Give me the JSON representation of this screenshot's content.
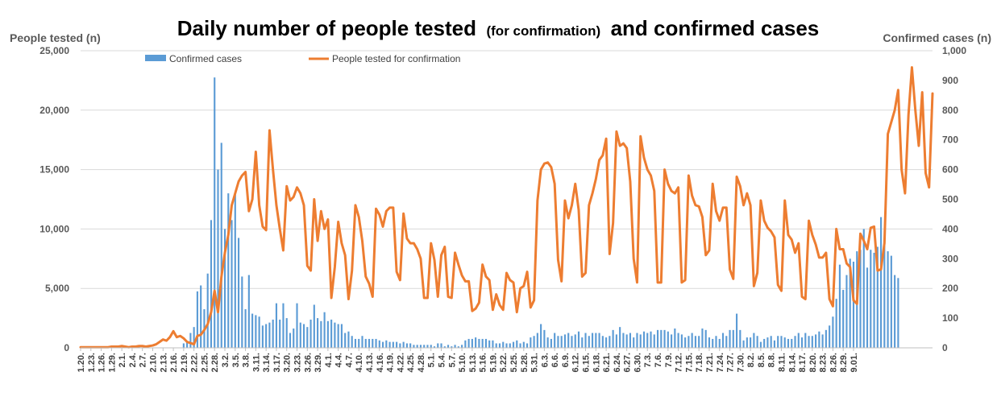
{
  "chart_data": {
    "type": "bar+line",
    "title": "Daily number of people tested",
    "title_parenthetical": "(for confirmation)",
    "title_suffix": "and confirmed cases",
    "ylabel_left": "People tested (n)",
    "ylabel_right": "Confirmed cases (n)",
    "ylim_left": [
      0,
      25000
    ],
    "ylim_right": [
      0,
      1000
    ],
    "yticks_left": [
      "0",
      "5,000",
      "10,000",
      "15,000",
      "20,000",
      "25,000"
    ],
    "yticks_right": [
      "0",
      "100",
      "200",
      "300",
      "400",
      "500",
      "600",
      "700",
      "800",
      "900",
      "1,000"
    ],
    "xtick_labels": [
      "1.20.",
      "1.23.",
      "1.26.",
      "1.29.",
      "2.1.",
      "2.4.",
      "2.7.",
      "2.10.",
      "2.13.",
      "2.16.",
      "2.19.",
      "2.22.",
      "2.25.",
      "2.28.",
      "3.2.",
      "3.5.",
      "3.8.",
      "3.11.",
      "3.14.",
      "3.17.",
      "3.20.",
      "3.23.",
      "3.26.",
      "3.29.",
      "4.1.",
      "4.4.",
      "4.7.",
      "4.10.",
      "4.13.",
      "4.16.",
      "4.19.",
      "4.22.",
      "4.25.",
      "4.28.",
      "5.1.",
      "5.4.",
      "5.7.",
      "5.10.",
      "5.13.",
      "5.16.",
      "5.19.",
      "5.22.",
      "5.25.",
      "5.28.",
      "5.31.",
      "6.3.",
      "6.6.",
      "6.9.",
      "6.12.",
      "6.15.",
      "6.18.",
      "6.21.",
      "6.24.",
      "6.27.",
      "6.30.",
      "7.3.",
      "7.6.",
      "7.9.",
      "7.12.",
      "7.15.",
      "7.18.",
      "7.21.",
      "7.24.",
      "7.27.",
      "7.30.",
      "8.2.",
      "8.5.",
      "8.8.",
      "8.11.",
      "8.14.",
      "8.17.",
      "8.20.",
      "8.23.",
      "8.26.",
      "8.29.",
      "9.01."
    ],
    "legend": {
      "placement": "top",
      "bars_label": "Confirmed cases",
      "line_label": "People tested for confirmation"
    },
    "series": [
      {
        "name": "Confirmed cases",
        "axis": "right",
        "type": "bar",
        "color": "#5b9bd5",
        "start_date": "2020-01-20",
        "step_days": 1,
        "values": [
          1,
          0,
          0,
          0,
          1,
          1,
          1,
          1,
          0,
          2,
          2,
          1,
          1,
          2,
          1,
          0,
          0,
          3,
          0,
          0,
          1,
          0,
          1,
          0,
          0,
          0,
          0,
          0,
          0,
          0,
          15,
          20,
          50,
          70,
          190,
          210,
          130,
          250,
          430,
          910,
          600,
          690,
          400,
          520,
          430,
          520,
          370,
          240,
          130,
          245,
          115,
          110,
          105,
          75,
          80,
          85,
          95,
          150,
          95,
          150,
          100,
          50,
          65,
          150,
          85,
          80,
          70,
          95,
          145,
          100,
          90,
          120,
          90,
          95,
          85,
          80,
          80,
          50,
          55,
          40,
          30,
          30,
          40,
          30,
          30,
          30,
          30,
          25,
          20,
          25,
          20,
          20,
          20,
          15,
          20,
          15,
          15,
          10,
          10,
          10,
          10,
          10,
          10,
          5,
          15,
          15,
          5,
          10,
          5,
          10,
          5,
          10,
          25,
          30,
          30,
          35,
          30,
          30,
          30,
          25,
          25,
          15,
          15,
          20,
          15,
          15,
          20,
          25,
          15,
          20,
          15,
          35,
          40,
          50,
          80,
          60,
          35,
          30,
          50,
          40,
          40,
          45,
          50,
          40,
          45,
          55,
          35,
          50,
          40,
          50,
          50,
          50,
          40,
          35,
          40,
          60,
          45,
          70,
          50,
          45,
          50,
          35,
          50,
          45,
          55,
          50,
          55,
          45,
          60,
          60,
          60,
          55,
          45,
          65,
          50,
          45,
          35,
          40,
          50,
          40,
          40,
          65,
          60,
          35,
          30,
          40,
          30,
          50,
          40,
          60,
          60,
          115,
          60,
          25,
          35,
          35,
          50,
          40,
          20,
          30,
          35,
          40,
          25,
          40,
          40,
          35,
          30,
          30,
          40,
          50,
          35,
          50,
          40,
          40,
          45,
          55,
          45,
          60,
          75,
          105,
          165,
          280,
          195,
          245,
          300,
          290,
          325,
          330,
          400,
          270,
          330,
          320,
          340,
          440,
          370,
          325,
          310,
          245,
          235
        ]
      },
      {
        "name": "People tested for confirmation",
        "axis": "left",
        "type": "line",
        "color": "#ed7d31",
        "start_date": "2020-01-20",
        "step_days": 1,
        "values": [
          50,
          50,
          50,
          50,
          50,
          50,
          50,
          50,
          50,
          100,
          100,
          100,
          150,
          100,
          50,
          100,
          100,
          150,
          150,
          100,
          150,
          200,
          300,
          500,
          700,
          600,
          900,
          1400,
          900,
          1000,
          800,
          500,
          400,
          300,
          1000,
          1100,
          1500,
          2000,
          3000,
          4800,
          3000,
          6000,
          8000,
          9500,
          12000,
          13000,
          14000,
          14500,
          14800,
          11500,
          12500,
          16500,
          12000,
          10200,
          9900,
          18300,
          15000,
          12000,
          10000,
          8200,
          13600,
          12400,
          12700,
          13500,
          13000,
          12000,
          6900,
          6500,
          12500,
          9000,
          11500,
          10000,
          10800,
          4200,
          6800,
          10600,
          8800,
          7800,
          4100,
          6500,
          12000,
          11000,
          9000,
          6000,
          5400,
          4300,
          11700,
          11200,
          10200,
          11500,
          11800,
          11800,
          6400,
          5700,
          11300,
          9200,
          8800,
          8800,
          8300,
          7500,
          4200,
          4200,
          8800,
          7400,
          4300,
          7800,
          8500,
          4300,
          4200,
          8000,
          7000,
          6100,
          5600,
          5600,
          3100,
          3300,
          3800,
          7000,
          6000,
          5700,
          3200,
          4500,
          3600,
          3200,
          6300,
          5700,
          5500,
          3000,
          5000,
          5200,
          6400,
          3400,
          4000,
          12400,
          15000,
          15500,
          15600,
          15200,
          13800,
          7400,
          5600,
          12400,
          10900,
          12000,
          13800,
          11600,
          6000,
          6300,
          12000,
          13000,
          14200,
          15800,
          16200,
          17600,
          7900,
          10500,
          18200,
          17000,
          17200,
          16800,
          14000,
          7500,
          5500,
          17800,
          16000,
          15000,
          14500,
          13200,
          5500,
          5500,
          15000,
          13800,
          13200,
          13000,
          13500,
          5500,
          5700,
          14500,
          12800,
          12000,
          11900,
          11000,
          7800,
          8200,
          13800,
          11500,
          10700,
          11800,
          11800,
          6600,
          5800,
          14400,
          13600,
          12000,
          13000,
          12000,
          5200,
          6300,
          12400,
          10700,
          10100,
          9800,
          9300,
          5300,
          4800,
          12400,
          9500,
          9100,
          8000,
          8800,
          4300,
          4100,
          10700,
          9500,
          8700,
          7600,
          7600,
          8000,
          4100,
          3500,
          10000,
          8300,
          8300,
          7100,
          6800,
          4000,
          3700,
          9600,
          9000,
          8300,
          10100,
          10200,
          6500,
          6600,
          8800,
          18000,
          19000,
          20000,
          21700,
          15000,
          13000,
          19600,
          23600,
          20000,
          17000,
          21500,
          14700,
          13500,
          21400
        ]
      }
    ]
  }
}
